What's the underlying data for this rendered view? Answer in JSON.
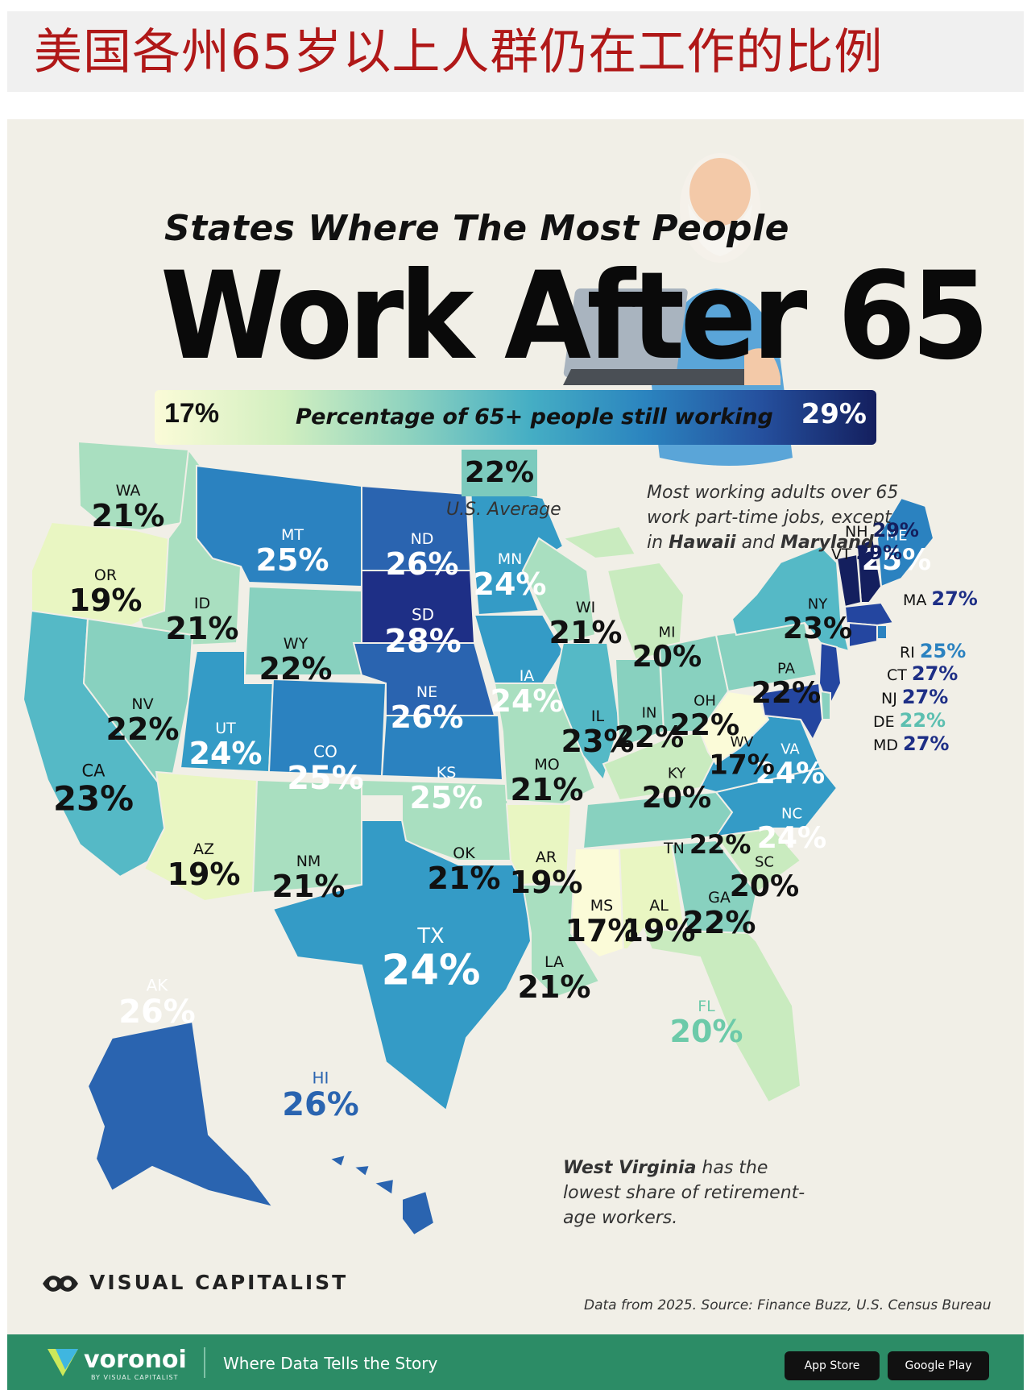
{
  "banner": {
    "cn_title": "美国各州65岁以上人群仍在工作的比例"
  },
  "header": {
    "subtitle": "States Where The Most People",
    "title": "Work After 65"
  },
  "legend": {
    "min": "17%",
    "max": "29%",
    "title": "Percentage of 65+ people still working"
  },
  "average": {
    "value": "22%",
    "label": "U.S. Average"
  },
  "notes": {
    "part_time_pre": "Most working adults over 65 work part-time jobs, except in ",
    "hawaii": "Hawaii",
    "and": " and ",
    "maryland": "Maryland",
    "period": ".",
    "wv_bold": "West Virginia",
    "wv_rest": " has the lowest share of retirement-age workers."
  },
  "brand": {
    "name": "VISUAL CAPITALIST"
  },
  "source": "Data from 2025. Source: Finance Buzz, U.S. Census Bureau",
  "footer": {
    "logo": "voronoi",
    "logo_sub": "BY VISUAL CAPITALIST",
    "tagline": "Where Data Tells the Story",
    "app_store": "App Store",
    "google_play": "Google Play"
  },
  "map_colors": {
    "17": "#fbfbd8",
    "19": "#e9f6c2",
    "20": "#c9ebbf",
    "21": "#a9dfc0",
    "22": "#88d1bf",
    "23": "#55b9c6",
    "24": "#349bc6",
    "25": "#2b82c0",
    "26": "#2a64b0",
    "27": "#2446a0",
    "28": "#1e2f86",
    "29": "#141f5e"
  },
  "states": [
    {
      "abbr": "WA",
      "pct": "21%",
      "value": 21
    },
    {
      "abbr": "OR",
      "pct": "19%",
      "value": 19
    },
    {
      "abbr": "CA",
      "pct": "23%",
      "value": 23
    },
    {
      "abbr": "ID",
      "pct": "21%",
      "value": 21
    },
    {
      "abbr": "NV",
      "pct": "22%",
      "value": 22
    },
    {
      "abbr": "MT",
      "pct": "25%",
      "value": 25
    },
    {
      "abbr": "WY",
      "pct": "22%",
      "value": 22
    },
    {
      "abbr": "UT",
      "pct": "24%",
      "value": 24
    },
    {
      "abbr": "AZ",
      "pct": "19%",
      "value": 19
    },
    {
      "abbr": "CO",
      "pct": "25%",
      "value": 25
    },
    {
      "abbr": "NM",
      "pct": "21%",
      "value": 21
    },
    {
      "abbr": "ND",
      "pct": "26%",
      "value": 26
    },
    {
      "abbr": "SD",
      "pct": "28%",
      "value": 28
    },
    {
      "abbr": "NE",
      "pct": "26%",
      "value": 26
    },
    {
      "abbr": "KS",
      "pct": "25%",
      "value": 25
    },
    {
      "abbr": "OK",
      "pct": "21%",
      "value": 21
    },
    {
      "abbr": "TX",
      "pct": "24%",
      "value": 24
    },
    {
      "abbr": "MN",
      "pct": "24%",
      "value": 24
    },
    {
      "abbr": "IA",
      "pct": "24%",
      "value": 24
    },
    {
      "abbr": "MO",
      "pct": "21%",
      "value": 21
    },
    {
      "abbr": "AR",
      "pct": "19%",
      "value": 19
    },
    {
      "abbr": "LA",
      "pct": "21%",
      "value": 21
    },
    {
      "abbr": "WI",
      "pct": "21%",
      "value": 21
    },
    {
      "abbr": "IL",
      "pct": "23%",
      "value": 23
    },
    {
      "abbr": "MI",
      "pct": "20%",
      "value": 20
    },
    {
      "abbr": "IN",
      "pct": "22%",
      "value": 22
    },
    {
      "abbr": "OH",
      "pct": "22%",
      "value": 22
    },
    {
      "abbr": "KY",
      "pct": "20%",
      "value": 20
    },
    {
      "abbr": "TN",
      "pct": "22%",
      "value": 22
    },
    {
      "abbr": "MS",
      "pct": "17%",
      "value": 17
    },
    {
      "abbr": "AL",
      "pct": "19%",
      "value": 19
    },
    {
      "abbr": "GA",
      "pct": "22%",
      "value": 22
    },
    {
      "abbr": "FL",
      "pct": "20%",
      "value": 20
    },
    {
      "abbr": "SC",
      "pct": "20%",
      "value": 20
    },
    {
      "abbr": "NC",
      "pct": "24%",
      "value": 24
    },
    {
      "abbr": "VA",
      "pct": "24%",
      "value": 24
    },
    {
      "abbr": "WV",
      "pct": "17%",
      "value": 17
    },
    {
      "abbr": "PA",
      "pct": "22%",
      "value": 22
    },
    {
      "abbr": "NY",
      "pct": "23%",
      "value": 23
    },
    {
      "abbr": "ME",
      "pct": "25%",
      "value": 25
    },
    {
      "abbr": "NH",
      "pct": "29%",
      "value": 29
    },
    {
      "abbr": "VT",
      "pct": "29%",
      "value": 29
    },
    {
      "abbr": "MA",
      "pct": "27%",
      "value": 27
    },
    {
      "abbr": "RI",
      "pct": "25%",
      "value": 25
    },
    {
      "abbr": "CT",
      "pct": "27%",
      "value": 27
    },
    {
      "abbr": "NJ",
      "pct": "27%",
      "value": 27
    },
    {
      "abbr": "DE",
      "pct": "22%",
      "value": 22
    },
    {
      "abbr": "MD",
      "pct": "27%",
      "value": 27
    },
    {
      "abbr": "AK",
      "pct": "26%",
      "value": 26
    },
    {
      "abbr": "HI",
      "pct": "26%",
      "value": 26
    }
  ]
}
